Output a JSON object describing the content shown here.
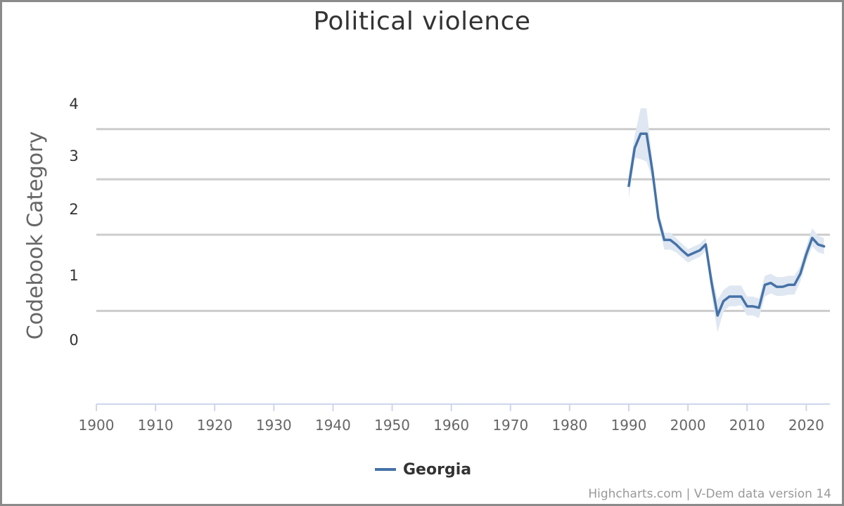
{
  "chart_data": {
    "type": "line",
    "title": "Political violence",
    "ylabel": "Codebook Category",
    "xlabel": "",
    "xlim": [
      1900,
      2024
    ],
    "ylim": [
      -0.8,
      4
    ],
    "x_ticks": [
      "1900",
      "1910",
      "1920",
      "1930",
      "1940",
      "1950",
      "1960",
      "1970",
      "1980",
      "1990",
      "2000",
      "2010",
      "2020"
    ],
    "y_tick_labels": [
      "0",
      "1",
      "2",
      "3",
      "4"
    ],
    "gridlines": [
      0.63,
      1.8,
      2.65,
      3.42
    ],
    "legend_position": "bottom-center",
    "series": [
      {
        "name": "Georgia",
        "color": "#4572a7",
        "band_color": "#dfe7f2",
        "points": [
          {
            "x": 1990,
            "y": 2.55,
            "low": 2.36,
            "high": 2.72
          },
          {
            "x": 1991,
            "y": 3.13,
            "low": 2.98,
            "high": 3.32
          },
          {
            "x": 1992,
            "y": 3.35,
            "low": 2.96,
            "high": 3.74
          },
          {
            "x": 1993,
            "y": 3.35,
            "low": 2.92,
            "high": 3.74
          },
          {
            "x": 1994,
            "y": 2.77,
            "low": 2.65,
            "high": 2.92
          },
          {
            "x": 1995,
            "y": 2.06,
            "low": 1.95,
            "high": 2.16
          },
          {
            "x": 1996,
            "y": 1.72,
            "low": 1.57,
            "high": 1.83
          },
          {
            "x": 1997,
            "y": 1.72,
            "low": 1.57,
            "high": 1.83
          },
          {
            "x": 1998,
            "y": 1.65,
            "low": 1.53,
            "high": 1.75
          },
          {
            "x": 1999,
            "y": 1.56,
            "low": 1.45,
            "high": 1.66
          },
          {
            "x": 2000,
            "y": 1.48,
            "low": 1.37,
            "high": 1.58
          },
          {
            "x": 2001,
            "y": 1.52,
            "low": 1.42,
            "high": 1.62
          },
          {
            "x": 2002,
            "y": 1.56,
            "low": 1.46,
            "high": 1.66
          },
          {
            "x": 2003,
            "y": 1.65,
            "low": 1.55,
            "high": 1.75
          },
          {
            "x": 2004,
            "y": 1.06,
            "low": 0.88,
            "high": 1.2
          },
          {
            "x": 2005,
            "y": 0.56,
            "low": 0.3,
            "high": 0.8
          },
          {
            "x": 2006,
            "y": 0.78,
            "low": 0.62,
            "high": 0.95
          },
          {
            "x": 2007,
            "y": 0.85,
            "low": 0.7,
            "high": 1.02
          },
          {
            "x": 2008,
            "y": 0.85,
            "low": 0.7,
            "high": 1.02
          },
          {
            "x": 2009,
            "y": 0.85,
            "low": 0.72,
            "high": 1.02
          },
          {
            "x": 2010,
            "y": 0.7,
            "low": 0.56,
            "high": 0.85
          },
          {
            "x": 2011,
            "y": 0.7,
            "low": 0.56,
            "high": 0.85
          },
          {
            "x": 2012,
            "y": 0.68,
            "low": 0.52,
            "high": 0.82
          },
          {
            "x": 2013,
            "y": 1.03,
            "low": 0.85,
            "high": 1.17
          },
          {
            "x": 2014,
            "y": 1.06,
            "low": 0.9,
            "high": 1.2
          },
          {
            "x": 2015,
            "y": 1.0,
            "low": 0.86,
            "high": 1.15
          },
          {
            "x": 2016,
            "y": 1.0,
            "low": 0.86,
            "high": 1.15
          },
          {
            "x": 2017,
            "y": 1.03,
            "low": 0.88,
            "high": 1.17
          },
          {
            "x": 2018,
            "y": 1.03,
            "low": 0.88,
            "high": 1.17
          },
          {
            "x": 2019,
            "y": 1.2,
            "low": 1.08,
            "high": 1.32
          },
          {
            "x": 2020,
            "y": 1.5,
            "low": 1.38,
            "high": 1.62
          },
          {
            "x": 2021,
            "y": 1.75,
            "low": 1.62,
            "high": 1.9
          },
          {
            "x": 2022,
            "y": 1.65,
            "low": 1.53,
            "high": 1.78
          },
          {
            "x": 2023,
            "y": 1.62,
            "low": 1.5,
            "high": 1.75
          }
        ]
      }
    ]
  },
  "credits": "Highcharts.com | V-Dem data version 14"
}
